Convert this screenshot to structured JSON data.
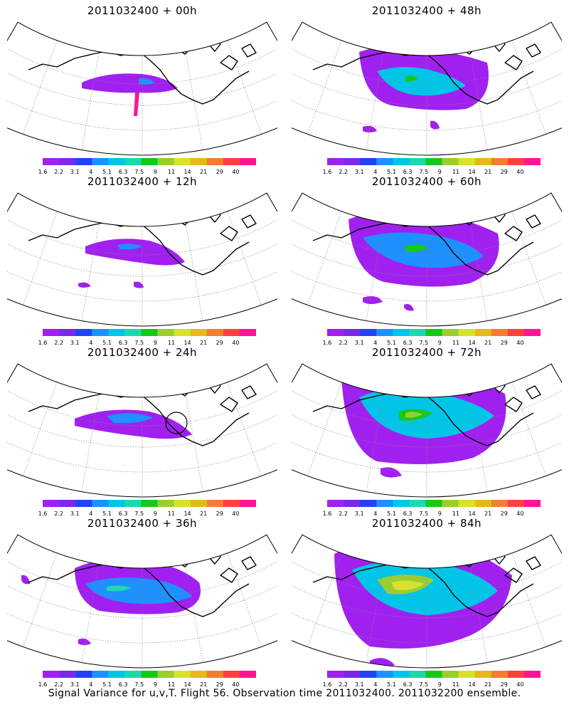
{
  "chart_data": {
    "type": "heatmap",
    "colorbar": {
      "labels": [
        "1.6",
        "2.2",
        "3.1",
        "4",
        "5.1",
        "6.3",
        "7.5",
        "9",
        "11",
        "14",
        "21",
        "29",
        "40"
      ],
      "colors": [
        "#a020f0",
        "#7b2ae0",
        "#2244ee",
        "#1e90ff",
        "#00c5e8",
        "#20d6b0",
        "#18c818",
        "#9acd32",
        "#d8e030",
        "#e6b820",
        "#f08030",
        "#ff4040",
        "#ff1493"
      ]
    },
    "panels": [
      {
        "title": "2011032400 + 00h"
      },
      {
        "title": "2011032400 + 48h"
      },
      {
        "title": "2011032400 + 12h"
      },
      {
        "title": "2011032400 + 60h"
      },
      {
        "title": "2011032400 + 24h"
      },
      {
        "title": "2011032400 + 72h"
      },
      {
        "title": "2011032400 + 36h"
      },
      {
        "title": "2011032400 + 84h"
      }
    ]
  },
  "footer": "Signal Variance for u,v,T. Flight 56. Observation time 2011032400. 2011032200 ensemble."
}
